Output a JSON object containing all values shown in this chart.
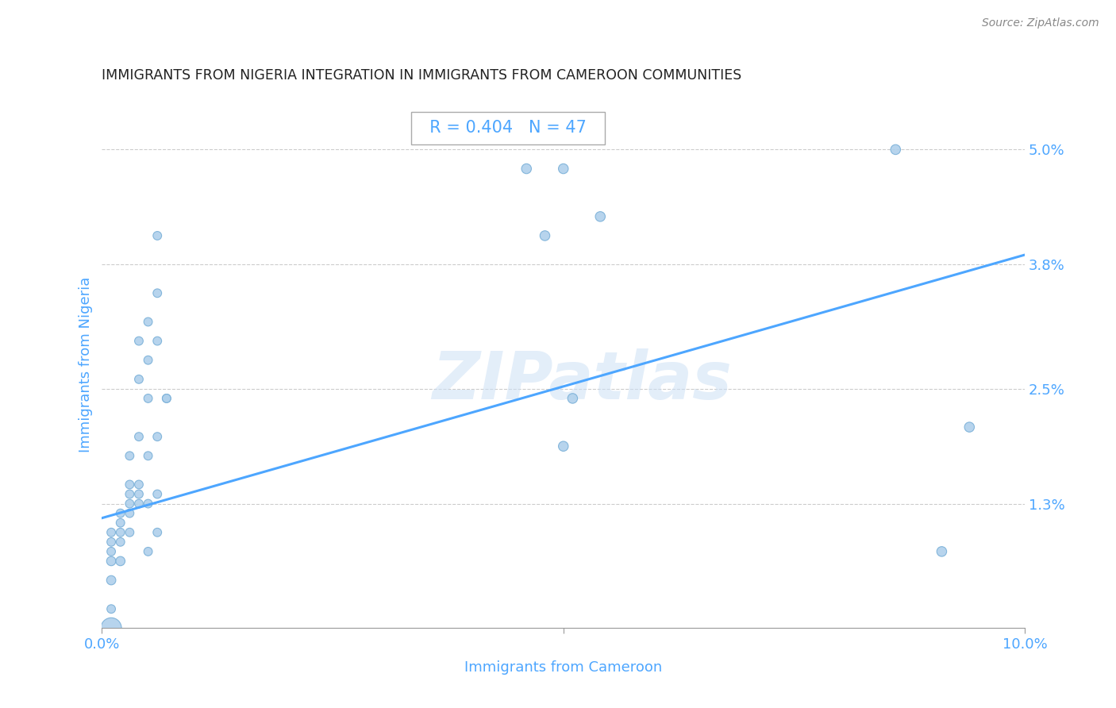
{
  "title": "IMMIGRANTS FROM NIGERIA INTEGRATION IN IMMIGRANTS FROM CAMEROON COMMUNITIES",
  "source": "Source: ZipAtlas.com",
  "xlabel": "Immigrants from Cameroon",
  "ylabel": "Immigrants from Nigeria",
  "R": 0.404,
  "N": 47,
  "xlim": [
    0.0,
    0.1
  ],
  "ylim": [
    0.0,
    0.055
  ],
  "watermark": "ZIPatlas",
  "scatter_color": "#afd0eb",
  "scatter_edge_color": "#7ab0d8",
  "line_color": "#4da6ff",
  "grid_color": "#cccccc",
  "title_color": "#222222",
  "axis_color": "#4da6ff",
  "line_y0": 0.0115,
  "line_y1": 0.039,
  "points": [
    [
      0.001,
      0.0
    ],
    [
      0.001,
      0.005
    ],
    [
      0.001,
      0.007
    ],
    [
      0.001,
      0.008
    ],
    [
      0.001,
      0.009
    ],
    [
      0.001,
      0.01
    ],
    [
      0.002,
      0.007
    ],
    [
      0.002,
      0.009
    ],
    [
      0.002,
      0.01
    ],
    [
      0.002,
      0.011
    ],
    [
      0.002,
      0.012
    ],
    [
      0.003,
      0.01
    ],
    [
      0.003,
      0.012
    ],
    [
      0.003,
      0.013
    ],
    [
      0.003,
      0.014
    ],
    [
      0.003,
      0.015
    ],
    [
      0.003,
      0.018
    ],
    [
      0.004,
      0.013
    ],
    [
      0.004,
      0.014
    ],
    [
      0.004,
      0.015
    ],
    [
      0.004,
      0.02
    ],
    [
      0.004,
      0.026
    ],
    [
      0.004,
      0.03
    ],
    [
      0.005,
      0.008
    ],
    [
      0.005,
      0.013
    ],
    [
      0.005,
      0.018
    ],
    [
      0.005,
      0.024
    ],
    [
      0.005,
      0.028
    ],
    [
      0.005,
      0.032
    ],
    [
      0.006,
      0.01
    ],
    [
      0.006,
      0.014
    ],
    [
      0.006,
      0.02
    ],
    [
      0.006,
      0.03
    ],
    [
      0.006,
      0.035
    ],
    [
      0.006,
      0.041
    ],
    [
      0.007,
      0.024
    ],
    [
      0.007,
      0.024
    ],
    [
      0.046,
      0.048
    ],
    [
      0.048,
      0.041
    ],
    [
      0.05,
      0.048
    ],
    [
      0.05,
      0.019
    ],
    [
      0.051,
      0.024
    ],
    [
      0.054,
      0.043
    ],
    [
      0.086,
      0.05
    ],
    [
      0.091,
      0.008
    ],
    [
      0.094,
      0.021
    ],
    [
      0.001,
      0.002
    ]
  ],
  "sizes": [
    350,
    70,
    70,
    60,
    60,
    60,
    70,
    60,
    60,
    60,
    60,
    60,
    60,
    60,
    60,
    60,
    60,
    60,
    60,
    60,
    60,
    60,
    60,
    60,
    60,
    60,
    60,
    60,
    60,
    60,
    60,
    60,
    60,
    60,
    60,
    60,
    60,
    80,
    80,
    80,
    80,
    80,
    80,
    80,
    80,
    80,
    60
  ]
}
